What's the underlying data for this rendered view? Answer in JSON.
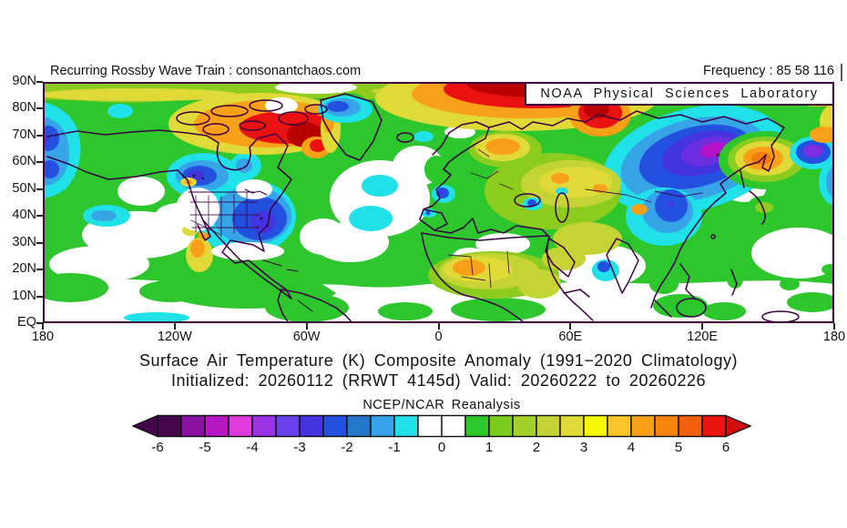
{
  "header": {
    "left_text": "Recurring Rossby Wave Train : consonantchaos.com",
    "right_text": "Frequency : 85 58 116"
  },
  "map": {
    "watermark": "NOAA Physical Sciences Laboratory",
    "lat_labels": [
      "90N",
      "80N",
      "70N",
      "60N",
      "50N",
      "40N",
      "30N",
      "20N",
      "10N",
      "EQ"
    ],
    "lon_labels": [
      "180",
      "120W",
      "60W",
      "0",
      "60E",
      "120E",
      "180"
    ],
    "frame_color": "#400040"
  },
  "titles": {
    "line1": "Surface Air Temperature (K) Composite Anomaly (1991−2020 Climatology)",
    "line2": "Initialized: 20260112 (RRWT 4145d) Valid: 20260222 to 20260226"
  },
  "colorbar": {
    "label": "NCEP/NCAR Reanalysis",
    "tick_labels": [
      "-6",
      "-5",
      "-4",
      "-3",
      "-2",
      "-1",
      "0",
      "1",
      "2",
      "3",
      "4",
      "5",
      "6"
    ],
    "cell_colors": [
      "#46064c",
      "#8a12a0",
      "#b818c4",
      "#e03ce0",
      "#9c34e4",
      "#6a40ec",
      "#4434e0",
      "#2450e0",
      "#2478cc",
      "#38a4e8",
      "#20e0e8",
      "#ffffff",
      "#ffffff",
      "#2cc82c",
      "#7ccc20",
      "#a4d02c",
      "#c4d434",
      "#e0da38",
      "#f8f800",
      "#f8c428",
      "#f8a018",
      "#f8840c",
      "#f2600e",
      "#e81410"
    ],
    "left_arrow_color": "#46064c",
    "right_arrow_color": "#d40c0c",
    "border_color": "#111111"
  },
  "chart_data": {
    "type": "heatmap",
    "title": "Surface Air Temperature (K) Composite Anomaly (1991−2020 Climatology)",
    "subtitle": "Initialized: 20260112 (RRWT 4145d) Valid: 20260222 to 20260226",
    "dataset": "NCEP/NCAR Reanalysis",
    "units": "K",
    "projection": "equirectangular world map, Northern Hemisphere",
    "x_axis": {
      "ticks": [
        "180",
        "120W",
        "60W",
        "0",
        "60E",
        "120E",
        "180"
      ],
      "range_deg": [
        -180,
        180
      ]
    },
    "y_axis": {
      "ticks": [
        "90N",
        "80N",
        "70N",
        "60N",
        "50N",
        "40N",
        "30N",
        "20N",
        "10N",
        "EQ"
      ],
      "range_deg": [
        0,
        90
      ]
    },
    "colorbar_ticks": [
      -6,
      -5,
      -4,
      -3,
      -2,
      -1,
      0,
      1,
      2,
      3,
      4,
      5,
      6
    ],
    "colorbar_cell_step": 0.5,
    "legend_position": "bottom",
    "notable_anomalies": [
      {
        "region": "Arctic / Barents-Kara Seas north of Scandinavia",
        "value_K": 6
      },
      {
        "region": "Canadian Arctic Archipelago and Baffin",
        "value_K": 4.5
      },
      {
        "region": "Northeast Siberia interior",
        "value_K": -4.5
      },
      {
        "region": "Eastern / Central United States",
        "value_K": -2.5
      },
      {
        "region": "Central Canada",
        "value_K": -2.5
      },
      {
        "region": "Bering Sea / West Alaska",
        "value_K": -2
      },
      {
        "region": "Northwest Greenland",
        "value_K": -2
      },
      {
        "region": "Chukotka (far-east Russia)",
        "value_K": 3
      },
      {
        "region": "Scandinavia / NW Russia",
        "value_K": 3
      },
      {
        "region": "Kazakhstan / Central Asia",
        "value_K": 2
      },
      {
        "region": "Sahel Africa",
        "value_K": 3
      },
      {
        "region": "France and Iberia spots",
        "value_K": -2
      },
      {
        "region": "Mid-latitude land background",
        "value_K": 1
      },
      {
        "region": "Tropical oceans",
        "value_K": 0
      }
    ]
  }
}
